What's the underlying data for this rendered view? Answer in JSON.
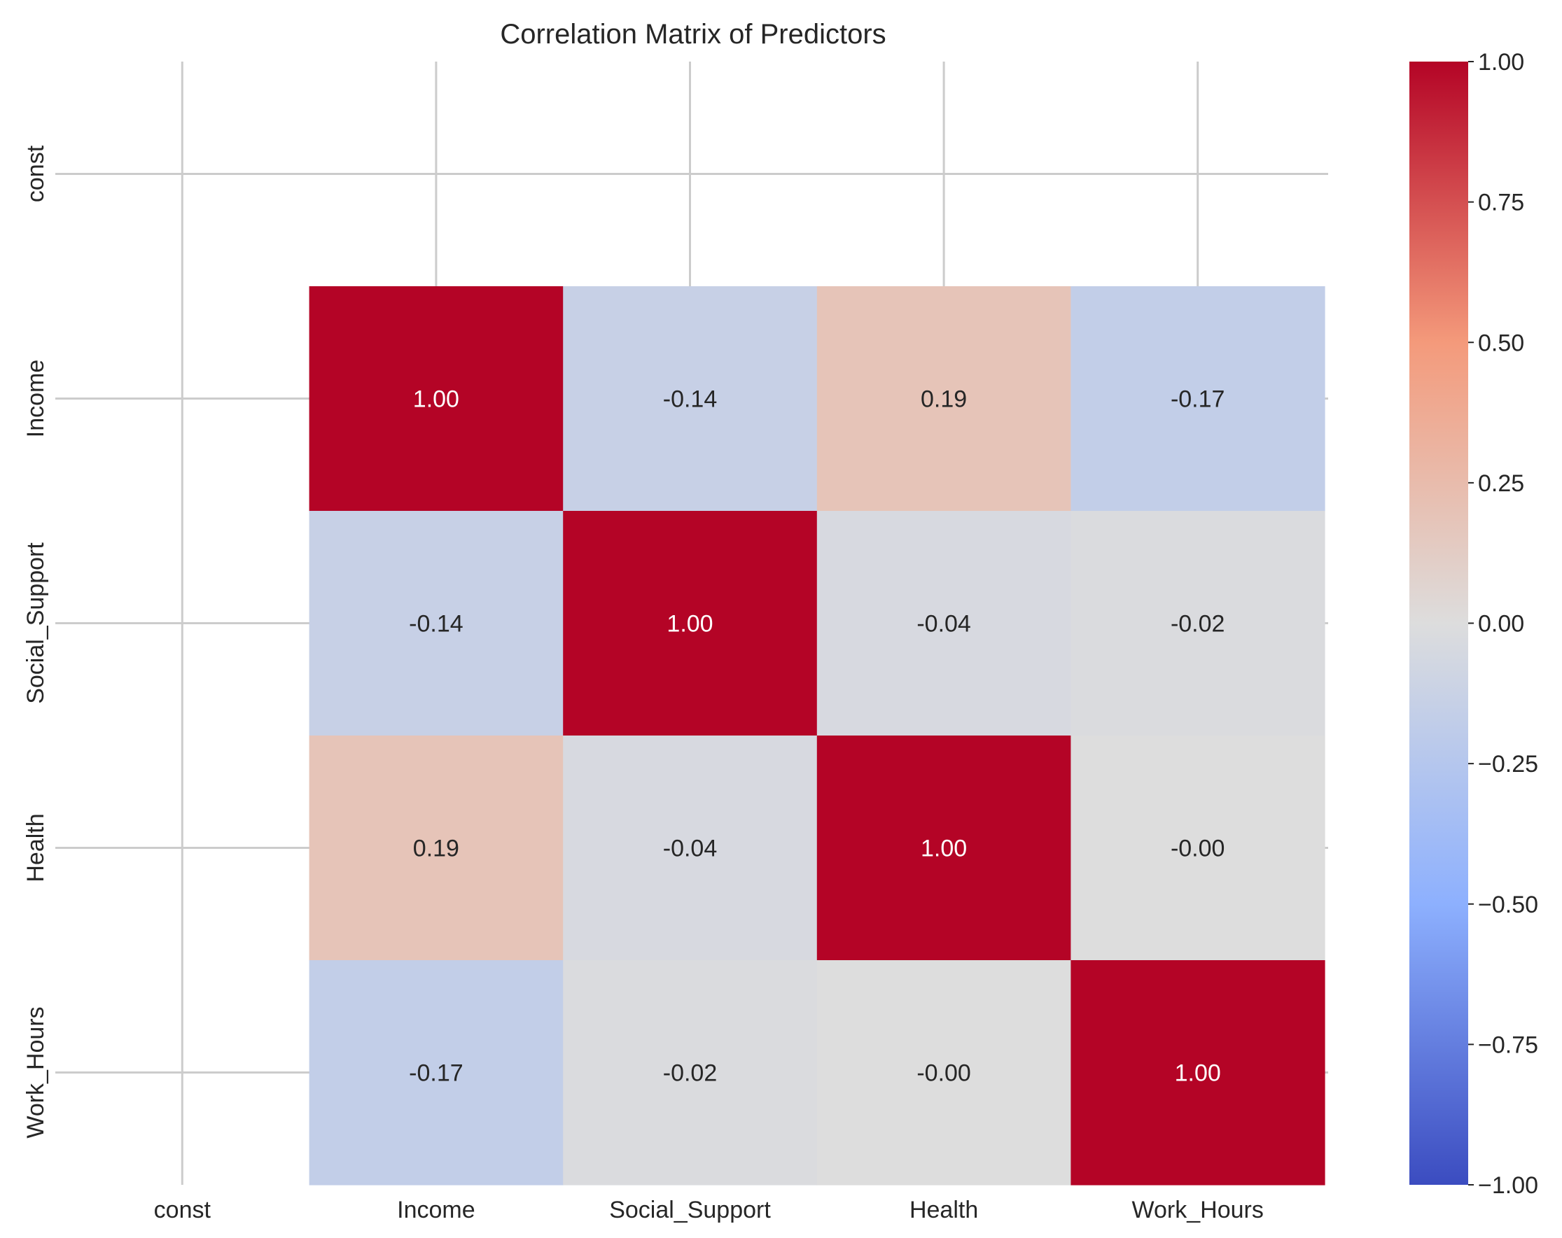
{
  "chart_data": {
    "type": "heatmap",
    "title": "Correlation Matrix of Predictors",
    "xlabel": "",
    "ylabel": "",
    "x_labels": [
      "const",
      "Income",
      "Social_Support",
      "Health",
      "Work_Hours"
    ],
    "y_labels": [
      "const",
      "Income",
      "Social_Support",
      "Health",
      "Work_Hours"
    ],
    "matrix": [
      [
        null,
        null,
        null,
        null,
        null
      ],
      [
        null,
        1.0,
        -0.14,
        0.19,
        -0.17
      ],
      [
        null,
        -0.14,
        1.0,
        -0.04,
        -0.02
      ],
      [
        null,
        0.19,
        -0.04,
        1.0,
        -0.0
      ],
      [
        null,
        -0.17,
        -0.02,
        -0.0,
        1.0
      ]
    ],
    "cell_labels": [
      [
        "",
        "",
        "",
        "",
        ""
      ],
      [
        "",
        "1.00",
        "-0.14",
        "0.19",
        "-0.17"
      ],
      [
        "",
        "-0.14",
        "1.00",
        "-0.04",
        "-0.02"
      ],
      [
        "",
        "0.19",
        "-0.04",
        "1.00",
        "-0.00"
      ],
      [
        "",
        "-0.17",
        "-0.02",
        "-0.00",
        "1.00"
      ]
    ],
    "colormap": "coolwarm",
    "colormap_stops": [
      "#3b4cc0",
      "#8db0fe",
      "#dddddd",
      "#f49a7b",
      "#b40426"
    ],
    "vmin": -1.0,
    "vmax": 1.0,
    "colorbar_ticks": [
      "1.00",
      "0.75",
      "0.50",
      "0.25",
      "0.00",
      "−0.25",
      "−0.50",
      "−0.75",
      "−1.00"
    ],
    "colorbar_tick_values": [
      1.0,
      0.75,
      0.5,
      0.25,
      0.0,
      -0.25,
      -0.5,
      -0.75,
      -1.0
    ],
    "grid": true,
    "colorbar_placement": "right"
  }
}
